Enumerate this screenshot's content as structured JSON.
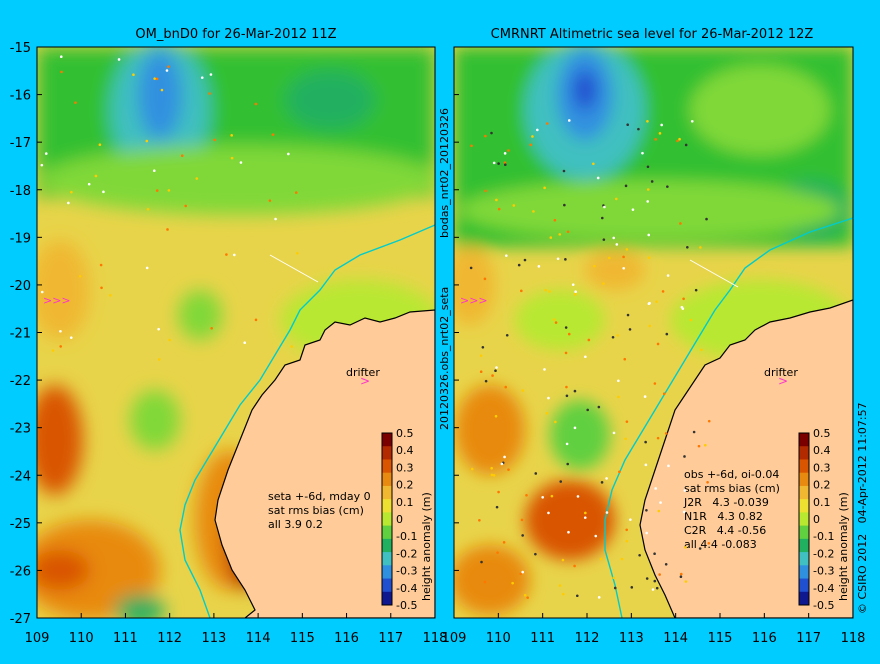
{
  "background_color": "#00ccff",
  "land_color": "#ffcc99",
  "coast_color": "#000000",
  "isobath_color": "#00cccc",
  "left_panel": {
    "title": "OM_bnD0 for 26-Mar-2012 11Z",
    "stats": [
      "seta +-6d, mday 0",
      "sat rms bias (cm)",
      "all 3.9 0.2"
    ],
    "drifter_label": "drifter"
  },
  "right_panel": {
    "title": "CMRNRT Altimetric sea level  for 26-Mar-2012 12Z",
    "stats": [
      "obs +-6d, oi-0.04",
      "sat rms bias (cm)",
      "J2R   4.3 -0.039",
      "N1R   4.3 0.82",
      "C2R   4.4 -0.56",
      "all 4.4 -0.083"
    ],
    "drifter_label": "drifter"
  },
  "middle_labels": {
    "top": "bodas_nrt02_20120326",
    "bottom": "20120326.obs_nrt02_seta"
  },
  "right_edge_label": "© CSIRO 2012   04-Apr-2012 11:07:57",
  "colorbar": {
    "title": "height anomaly (m)",
    "ticks": [
      "0.5",
      "0.4",
      "0.3",
      "0.2",
      "0.1",
      "0",
      "-0.1",
      "-0.2",
      "-0.3",
      "-0.4",
      "-0.5"
    ],
    "colors": [
      "#7a0000",
      "#b22a00",
      "#d95500",
      "#e88a10",
      "#f0b830",
      "#eee030",
      "#b8e830",
      "#60d040",
      "#20b060",
      "#40c0c0",
      "#3090e0",
      "#2050d0",
      "#101890"
    ]
  },
  "y_axis_labels": [
    "-15",
    "-16",
    "-17",
    "-18",
    "-19",
    "-20",
    "-21",
    "-22",
    "-23",
    "-24",
    "-25",
    "-26",
    "-27"
  ],
  "x_axis_labels": [
    "109",
    "110",
    "111",
    "112",
    "113",
    "114",
    "115",
    "116",
    "117",
    "118"
  ],
  "x_axis_labels_right": [
    "109",
    "110",
    "111",
    "112",
    "113",
    "114",
    "115",
    "116",
    "117",
    "118"
  ]
}
